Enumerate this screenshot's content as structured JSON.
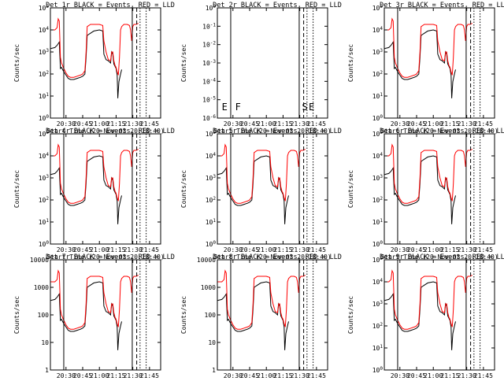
{
  "x_ticks": [
    "20:30",
    "20:45",
    "21:00",
    "21:15",
    "21:30",
    "21:45"
  ],
  "xlabel": "Start Time (20-Nov-03 20:18:40)",
  "ylabel": "Counts/sec",
  "colors": {
    "events": "#000000",
    "lld": "#ff0000",
    "frame": "#000000"
  },
  "chart_data": [
    {
      "type": "line",
      "title": "Det 1r BLACK = Events, RED = LLD",
      "ylog": true,
      "ylim": [
        1,
        100000
      ],
      "y_tick_labels": [
        "10^0",
        "10^1",
        "10^2",
        "10^3",
        "10^4",
        "10^5"
      ],
      "markers": [],
      "series": [
        {
          "name": "Events",
          "level": "mid"
        },
        {
          "name": "LLD",
          "level": "high"
        }
      ]
    },
    {
      "type": "line",
      "title": "Det 2r BLACK = Events, RED = LLD",
      "ylog": true,
      "ylim": [
        1e-06,
        1
      ],
      "y_tick_labels": [
        "10^-6",
        "10^-5",
        "10^-4",
        "10^-3",
        "10^-2",
        "10^-1",
        "10^0"
      ],
      "markers": [
        {
          "label": "E",
          "x": "20:20"
        },
        {
          "label": "F",
          "x": "20:32"
        },
        {
          "label": "S",
          "x": "21:32"
        },
        {
          "label": "E",
          "x": "21:38"
        }
      ],
      "series": []
    },
    {
      "type": "line",
      "title": "Det 3r BLACK = Events, RED = LLD",
      "ylog": true,
      "ylim": [
        1,
        100000
      ],
      "y_tick_labels": [
        "10^0",
        "10^1",
        "10^2",
        "10^3",
        "10^4",
        "10^5"
      ],
      "markers": [],
      "series": [
        {
          "name": "Events",
          "level": "mid"
        },
        {
          "name": "LLD",
          "level": "high"
        }
      ]
    },
    {
      "type": "line",
      "title": "Det 4r BLACK = Events, RED = LLD",
      "ylog": true,
      "ylim": [
        1,
        100000
      ],
      "y_tick_labels": [
        "10^0",
        "10^1",
        "10^2",
        "10^3",
        "10^4",
        "10^5"
      ],
      "markers": [],
      "series": [
        {
          "name": "Events",
          "level": "mid"
        },
        {
          "name": "LLD",
          "level": "high"
        }
      ]
    },
    {
      "type": "line",
      "title": "Det 5r BLACK = Events, RED = LLD",
      "ylog": true,
      "ylim": [
        1,
        100000
      ],
      "y_tick_labels": [
        "10^0",
        "10^1",
        "10^2",
        "10^3",
        "10^4",
        "10^5"
      ],
      "markers": [],
      "series": [
        {
          "name": "Events",
          "level": "mid"
        },
        {
          "name": "LLD",
          "level": "high"
        }
      ]
    },
    {
      "type": "line",
      "title": "Det 6r BLACK = Events, RED = LLD",
      "ylog": true,
      "ylim": [
        1,
        100000
      ],
      "y_tick_labels": [
        "10^0",
        "10^1",
        "10^2",
        "10^3",
        "10^4",
        "10^5"
      ],
      "markers": [],
      "series": [
        {
          "name": "Events",
          "level": "mid"
        },
        {
          "name": "LLD",
          "level": "high"
        }
      ]
    },
    {
      "type": "line",
      "title": "Det 7r BLACK = Events, RED = LLD",
      "ylog": true,
      "ylim": [
        1,
        10000
      ],
      "y_tick_labels": [
        "1",
        "10",
        "100",
        "1000",
        "10000"
      ],
      "markers": [],
      "series": [
        {
          "name": "Events",
          "level": "mid"
        },
        {
          "name": "LLD",
          "level": "high"
        }
      ]
    },
    {
      "type": "line",
      "title": "Det 8r BLACK = Events, RED = LLD",
      "ylog": true,
      "ylim": [
        1,
        10000
      ],
      "y_tick_labels": [
        "1",
        "10",
        "100",
        "1000",
        "10000"
      ],
      "markers": [],
      "series": [
        {
          "name": "Events",
          "level": "mid"
        },
        {
          "name": "LLD",
          "level": "high"
        }
      ]
    },
    {
      "type": "line",
      "title": "Det 9r BLACK = Events, RED = LLD",
      "ylog": true,
      "ylim": [
        1,
        100000
      ],
      "y_tick_labels": [
        "10^0",
        "10^1",
        "10^2",
        "10^3",
        "10^4",
        "10^5"
      ],
      "markers": [],
      "series": [
        {
          "name": "Events",
          "level": "mid"
        },
        {
          "name": "LLD",
          "level": "high"
        }
      ]
    }
  ]
}
